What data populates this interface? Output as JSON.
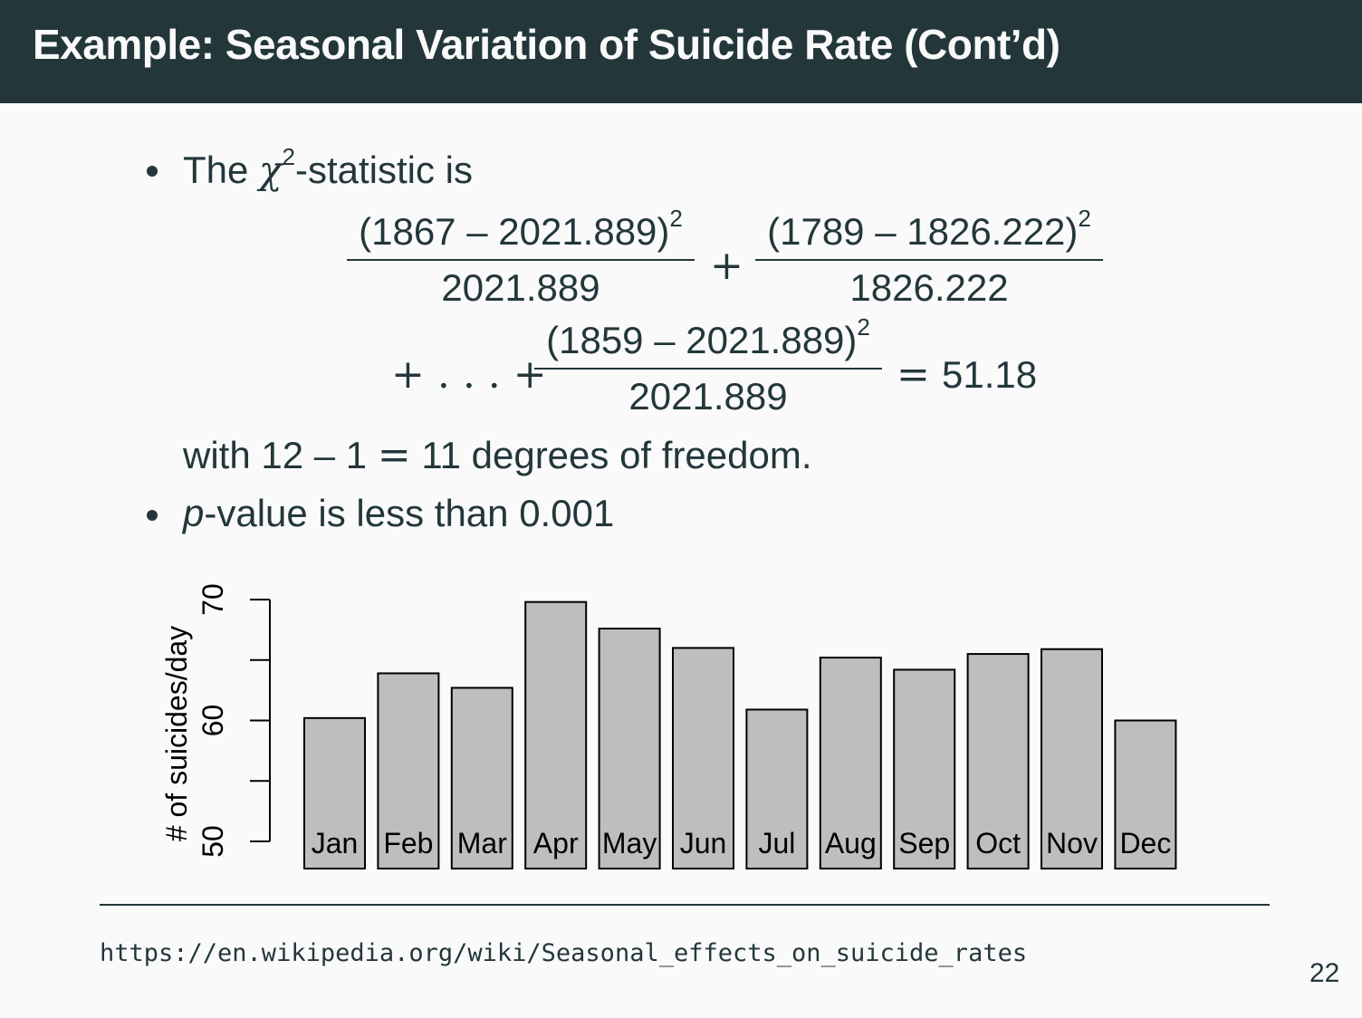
{
  "slide": {
    "title": "Example: Seasonal Variation of Suicide Rate (Cont’d)",
    "page_number": "22",
    "source_url": "https://en.wikipedia.org/wiki/Seasonal_effects_on_suicide_rates"
  },
  "bullets": {
    "first": {
      "lead": "The",
      "chi": "χ",
      "chi_sup": "2",
      "rest": "-statistic is"
    },
    "frac1": {
      "numerator": "(1867 – 2021.889)",
      "sup": "2",
      "denominator": "2021.889"
    },
    "plus1": "+",
    "frac2": {
      "numerator": "(1789 – 1826.222)",
      "sup": "2",
      "denominator": "1826.222"
    },
    "ellipsis": "+ . . . +",
    "frac3": {
      "numerator": "(1859 – 2021.889)",
      "sup": "2",
      "denominator": "2021.889"
    },
    "equals": "=",
    "result": "51.18",
    "dof_text": {
      "a": "with 12 – 1 ",
      "eq": "=",
      "b": " 11 degrees of freedom."
    },
    "second": {
      "p": "p",
      "rest": "-value is less than 0.001"
    }
  },
  "chart_data": {
    "type": "bar",
    "title": "",
    "xlabel": "",
    "ylabel": "# of suicides/day",
    "categories": [
      "Jan",
      "Feb",
      "Mar",
      "Apr",
      "May",
      "Jun",
      "Jul",
      "Aug",
      "Sep",
      "Oct",
      "Nov",
      "Dec"
    ],
    "values": [
      60.2,
      63.9,
      62.7,
      69.8,
      67.6,
      66.0,
      60.9,
      65.2,
      64.2,
      65.5,
      65.9,
      60.0
    ],
    "yticks": [
      "50",
      "60",
      "70"
    ],
    "ytick_values": [
      50,
      60,
      70
    ],
    "ylim": [
      48,
      70
    ],
    "bar_color": "#bebebe",
    "grid": false,
    "legend": "none"
  }
}
